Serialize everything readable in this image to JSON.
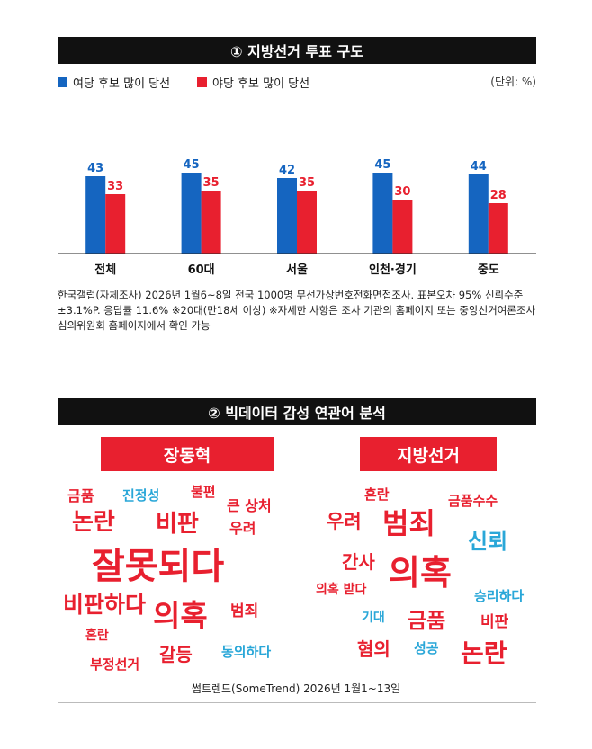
{
  "section1": {
    "title": "① 지방선거 투표 구도"
  },
  "legend": {
    "ruling": "여당 후보 많이 당선",
    "opposition": "야당 후보 많이 당선",
    "unit": "(단위: %)"
  },
  "colors": {
    "ruling": "#1565c0",
    "opposition": "#e8202f",
    "cloud_red": "#e8202f",
    "cloud_blue": "#2aa7d8",
    "header_bg": "#111111"
  },
  "chart_data": {
    "type": "bar",
    "categories": [
      "전체",
      "60대",
      "서울",
      "인천·경기",
      "중도"
    ],
    "series": [
      {
        "name": "여당 후보 많이 당선",
        "values": [
          43,
          45,
          42,
          45,
          44
        ]
      },
      {
        "name": "야당 후보 많이 당선",
        "values": [
          33,
          35,
          35,
          30,
          28
        ]
      }
    ],
    "ylim": [
      0,
      50
    ]
  },
  "source_note": "한국갤럽(자체조사) 2026년 1월6~8일 전국 1000명 무선가상번호전화면접조사. 표본오차 95% 신뢰수준 ±3.1%P. 응답률 11.6% ※20대(만18세 이상) ※자세한 사항은 조사 기관의 홈페이지 또는 중앙선거여론조사 심의위원회 홈페이지에서 확인 가능",
  "section2": {
    "title": "② 빅데이터 감성 연관어 분석"
  },
  "cloud_left": {
    "title": "장동혁",
    "words": [
      {
        "text": "금품",
        "color": "red"
      },
      {
        "text": "진정성",
        "color": "blue"
      },
      {
        "text": "불편",
        "color": "red"
      },
      {
        "text": "큰 상처",
        "color": "red"
      },
      {
        "text": "논란",
        "color": "red"
      },
      {
        "text": "비판",
        "color": "red"
      },
      {
        "text": "우려",
        "color": "red"
      },
      {
        "text": "잘못되다",
        "color": "red"
      },
      {
        "text": "비판하다",
        "color": "red"
      },
      {
        "text": "의혹",
        "color": "red"
      },
      {
        "text": "범죄",
        "color": "red"
      },
      {
        "text": "혼란",
        "color": "red"
      },
      {
        "text": "부정선거",
        "color": "red"
      },
      {
        "text": "갈등",
        "color": "red"
      },
      {
        "text": "동의하다",
        "color": "blue"
      }
    ]
  },
  "cloud_right": {
    "title": "지방선거",
    "words": [
      {
        "text": "혼란",
        "color": "red"
      },
      {
        "text": "금품수수",
        "color": "red"
      },
      {
        "text": "우려",
        "color": "red"
      },
      {
        "text": "범죄",
        "color": "red"
      },
      {
        "text": "신뢰",
        "color": "blue"
      },
      {
        "text": "간사",
        "color": "red"
      },
      {
        "text": "의혹",
        "color": "red"
      },
      {
        "text": "의혹 받다",
        "color": "red"
      },
      {
        "text": "승리하다",
        "color": "blue"
      },
      {
        "text": "기대",
        "color": "blue"
      },
      {
        "text": "금품",
        "color": "red"
      },
      {
        "text": "비판",
        "color": "red"
      },
      {
        "text": "혐의",
        "color": "red"
      },
      {
        "text": "성공",
        "color": "blue"
      },
      {
        "text": "논란",
        "color": "red"
      }
    ]
  },
  "credit": "썸트렌드(SomeTrend) 2026년 1월1~13일"
}
